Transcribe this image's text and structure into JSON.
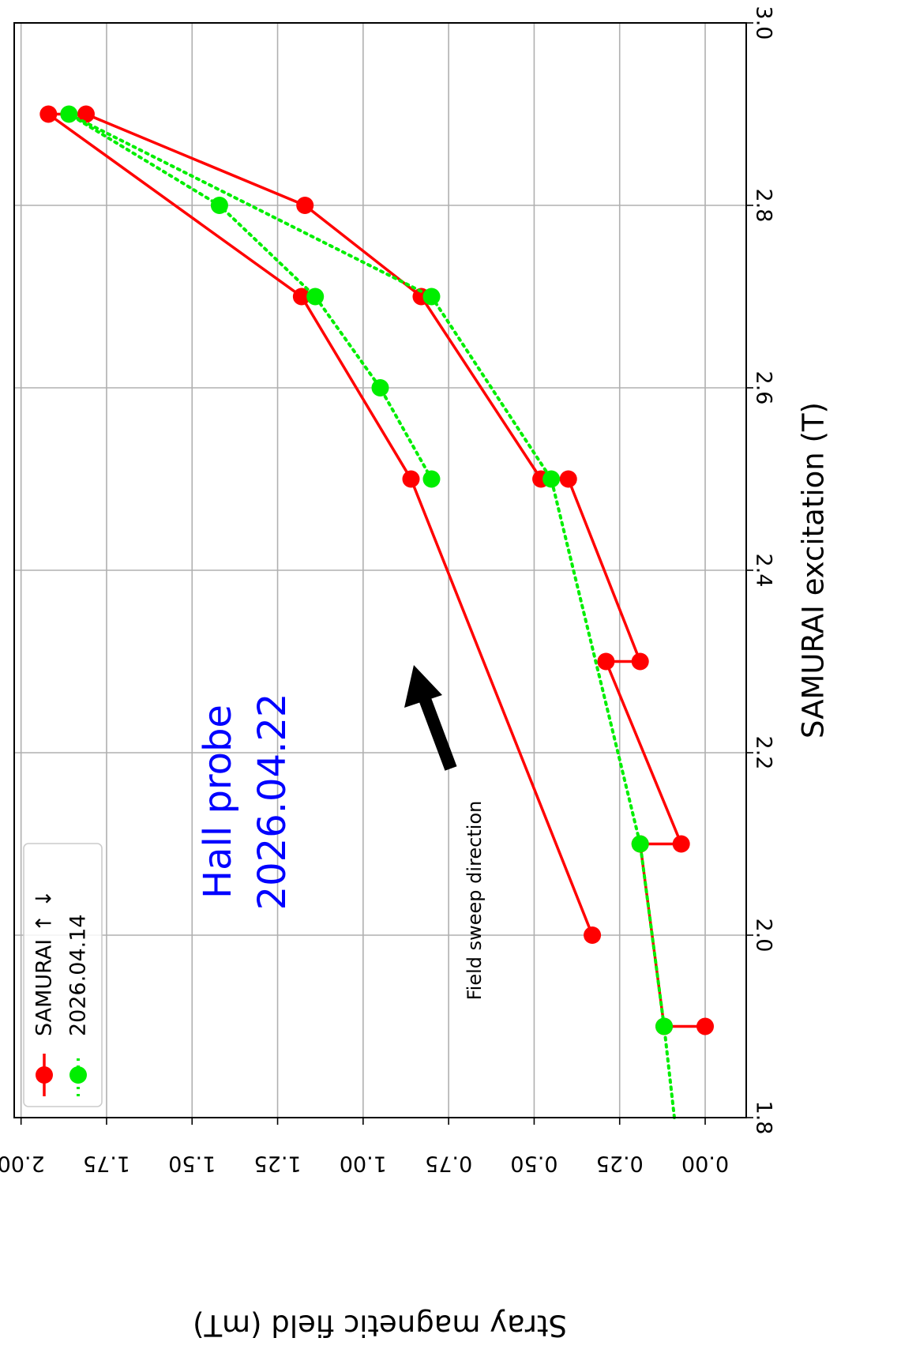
{
  "chart_data": {
    "type": "line",
    "xlabel": "SAMURAI excitation (T)",
    "ylabel": "Stray magnetic field (mT)",
    "xlim": [
      1.8,
      3.0
    ],
    "ylim": [
      -0.12,
      2.02
    ],
    "xticks": [
      1.8,
      2.0,
      2.2,
      2.4,
      2.6,
      2.8,
      3.0
    ],
    "xtick_labels": [
      "1.8",
      "2.0",
      "2.2",
      "2.4",
      "2.6",
      "2.8",
      "3.0"
    ],
    "yticks": [
      0.0,
      0.25,
      0.5,
      0.75,
      1.0,
      1.25,
      1.5,
      1.75,
      2.0
    ],
    "ytick_labels": [
      "0.00",
      "0.25",
      "0.50",
      "0.75",
      "1.00",
      "1.25",
      "1.50",
      "1.75",
      "2.00"
    ],
    "grid": true,
    "legend_placement": "bottom-left",
    "series": [
      {
        "name": "SAMURAI ↑ ↓",
        "color": "#ff0000",
        "line_style": "solid",
        "marker": "circle",
        "x": [
          1.9,
          1.9,
          2.1,
          2.1,
          2.3,
          2.3,
          2.5,
          2.5,
          2.7,
          2.8,
          2.9,
          2.9,
          2.7,
          2.5,
          2.0
        ],
        "y": [
          0.0,
          0.12,
          0.19,
          0.07,
          0.29,
          0.19,
          0.4,
          0.48,
          0.83,
          1.17,
          1.81,
          1.92,
          1.18,
          0.86,
          0.33
        ]
      },
      {
        "name": "2026.04.14",
        "color": "#00ee00",
        "line_style": "dotted",
        "marker": "circle",
        "x": [
          1.8,
          1.9,
          2.1,
          2.5,
          2.7,
          2.9,
          2.8,
          2.7,
          2.6,
          2.5
        ],
        "y": [
          0.09,
          0.12,
          0.19,
          0.45,
          0.8,
          1.86,
          1.42,
          1.14,
          0.95,
          0.8
        ]
      }
    ],
    "annotations": [
      {
        "text": "Hall probe",
        "color": "#0000ff"
      },
      {
        "text": "2026.04.22",
        "color": "#0000ff"
      },
      {
        "text": "Field sweep direction",
        "color": "#000000"
      }
    ]
  }
}
